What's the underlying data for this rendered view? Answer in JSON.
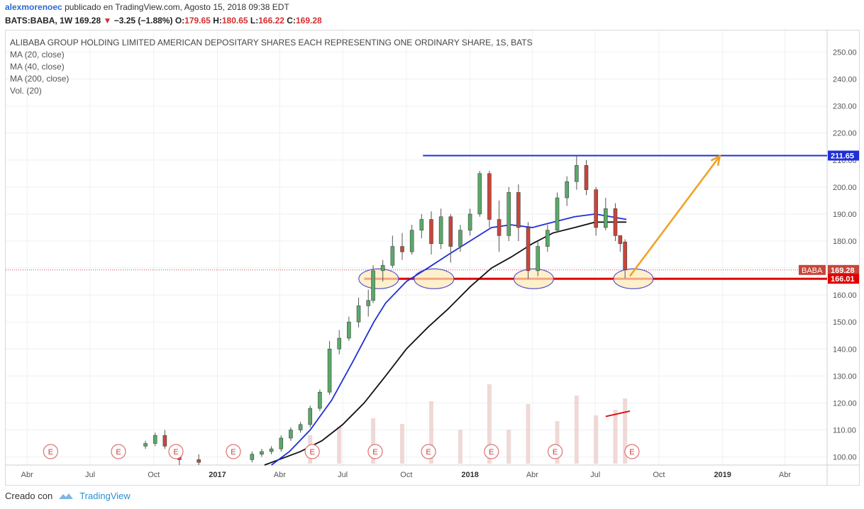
{
  "header": {
    "author": "alexmorenoec",
    "published": "publicado en TradingView.com, Agosto 15, 2018 09:38 EDT",
    "symbol": "BATS:BABA, 1W",
    "last": "169.28",
    "change": "−3.25 (−1.88%)",
    "o_label": "O:",
    "o_val": "179.65",
    "h_label": "H:",
    "h_val": "180.65",
    "l_label": "L:",
    "l_val": "166.22",
    "c_label": "C:",
    "c_val": "169.28"
  },
  "legend": {
    "title": "ALIBABA GROUP HOLDING LIMITED AMERICAN DEPOSITARY SHARES EACH REPRESENTING ONE ORDINARY SHARE, 1S, BATS",
    "ma20": "MA (20, close)",
    "ma40": "MA (40, close)",
    "ma200": "MA (200, close)",
    "vol": "Vol. (20)"
  },
  "footer": {
    "created": "Creado con",
    "brand": "TradingView"
  },
  "colors": {
    "up": "#5aa96a",
    "down": "#c8453a",
    "ma20": "#1f2fd6",
    "ma40": "#111111",
    "resistance": "#1f2fd6",
    "support": "#e00000",
    "arrow": "#f0a020",
    "ellipse_fill": "#fde9b8",
    "ellipse_stroke": "#5a55c8"
  },
  "chart_data": {
    "type": "candlestick",
    "symbol_badge": "BABA",
    "ylim": [
      97,
      258
    ],
    "y_ticks": [
      100,
      110,
      120,
      130,
      140,
      150,
      160,
      170,
      180,
      190,
      200,
      210,
      220,
      230,
      240,
      250
    ],
    "y_tick_labels": [
      "100.00",
      "110.00",
      "120.00",
      "130.00",
      "140.00",
      "150.00",
      "160.00",
      "170.00",
      "180.00",
      "190.00",
      "200.00",
      "210.00",
      "220.00",
      "230.00",
      "240.00",
      "250.00"
    ],
    "x_ticks": [
      {
        "label": "Abr",
        "date": "2016-04-01"
      },
      {
        "label": "Jul",
        "date": "2016-07-01"
      },
      {
        "label": "Oct",
        "date": "2016-10-01"
      },
      {
        "label": "2017",
        "date": "2017-01-01",
        "bold": true
      },
      {
        "label": "Abr",
        "date": "2017-04-01"
      },
      {
        "label": "Jul",
        "date": "2017-07-01"
      },
      {
        "label": "Oct",
        "date": "2017-10-01"
      },
      {
        "label": "2018",
        "date": "2018-01-01",
        "bold": true
      },
      {
        "label": "Abr",
        "date": "2018-04-01"
      },
      {
        "label": "Jul",
        "date": "2018-07-01"
      },
      {
        "label": "Oct",
        "date": "2018-10-01"
      },
      {
        "label": "2019",
        "date": "2019-01-01",
        "bold": true
      },
      {
        "label": "Abr",
        "date": "2019-04-01"
      }
    ],
    "x_range": [
      "2016-03-01",
      "2019-06-01"
    ],
    "last_price": 169.28,
    "last_price_label": "169.28",
    "resistance": {
      "value": 211.65,
      "label": "211.65",
      "from": "2017-10-25"
    },
    "support": {
      "value": 166.01,
      "label": "166.01",
      "from": "2017-08-01"
    },
    "target_arrow": {
      "from": [
        "2018-08-20",
        167.0
      ],
      "to": [
        "2018-12-28",
        211.5
      ]
    },
    "circled_lows": [
      {
        "date": "2017-08-22",
        "value": 166
      },
      {
        "date": "2017-11-10",
        "value": 166
      },
      {
        "date": "2018-04-03",
        "value": 166
      },
      {
        "date": "2018-08-25",
        "value": 166
      }
    ],
    "earnings_label": "E",
    "earnings_dates": [
      "2016-05-05",
      "2016-08-11",
      "2016-11-02",
      "2017-01-24",
      "2017-05-18",
      "2017-08-17",
      "2017-11-02",
      "2018-02-01",
      "2018-05-04",
      "2018-08-23"
    ],
    "ma20_points": [
      [
        "2017-03-20",
        97
      ],
      [
        "2017-04-15",
        102
      ],
      [
        "2017-05-15",
        110
      ],
      [
        "2017-06-15",
        121
      ],
      [
        "2017-07-15",
        135
      ],
      [
        "2017-08-15",
        150
      ],
      [
        "2017-09-01",
        157
      ],
      [
        "2017-10-01",
        165
      ],
      [
        "2017-11-01",
        170
      ],
      [
        "2017-12-01",
        175
      ],
      [
        "2018-01-01",
        180
      ],
      [
        "2018-02-01",
        185
      ],
      [
        "2018-03-01",
        186
      ],
      [
        "2018-04-01",
        185
      ],
      [
        "2018-05-01",
        187
      ],
      [
        "2018-06-01",
        189
      ],
      [
        "2018-07-01",
        190
      ],
      [
        "2018-08-15",
        188
      ]
    ],
    "ma40_points": [
      [
        "2017-03-10",
        97
      ],
      [
        "2017-05-01",
        102
      ],
      [
        "2017-06-01",
        106
      ],
      [
        "2017-07-01",
        112
      ],
      [
        "2017-08-01",
        120
      ],
      [
        "2017-09-01",
        130
      ],
      [
        "2017-10-01",
        140
      ],
      [
        "2017-11-01",
        148
      ],
      [
        "2017-12-01",
        155
      ],
      [
        "2018-01-01",
        163
      ],
      [
        "2018-02-01",
        170
      ],
      [
        "2018-03-01",
        174
      ],
      [
        "2018-04-01",
        179
      ],
      [
        "2018-05-01",
        183
      ],
      [
        "2018-06-01",
        185
      ],
      [
        "2018-07-01",
        187
      ],
      [
        "2018-08-15",
        187
      ]
    ],
    "candles": [
      [
        "2016-09-19",
        104,
        106,
        103,
        105
      ],
      [
        "2016-10-03",
        105,
        109,
        104,
        108
      ],
      [
        "2016-10-17",
        108,
        110,
        103,
        104
      ],
      [
        "2016-11-07",
        103,
        104,
        97,
        99
      ],
      [
        "2016-12-05",
        99,
        101,
        97,
        98
      ],
      [
        "2017-02-20",
        99,
        102,
        98,
        101
      ],
      [
        "2017-03-06",
        101,
        103,
        100,
        102
      ],
      [
        "2017-03-20",
        102,
        104,
        101,
        103
      ],
      [
        "2017-04-03",
        103,
        108,
        102,
        107
      ],
      [
        "2017-04-17",
        107,
        111,
        106,
        110
      ],
      [
        "2017-05-01",
        110,
        113,
        109,
        112
      ],
      [
        "2017-05-15",
        112,
        119,
        111,
        118
      ],
      [
        "2017-05-29",
        118,
        125,
        117,
        124
      ],
      [
        "2017-06-12",
        124,
        143,
        123,
        140
      ],
      [
        "2017-06-26",
        140,
        147,
        138,
        144
      ],
      [
        "2017-07-10",
        144,
        152,
        143,
        150
      ],
      [
        "2017-07-24",
        150,
        159,
        148,
        156
      ],
      [
        "2017-08-07",
        156,
        162,
        152,
        158
      ],
      [
        "2017-08-14",
        158,
        171,
        157,
        169
      ],
      [
        "2017-08-28",
        169,
        173,
        165,
        171
      ],
      [
        "2017-09-11",
        171,
        182,
        170,
        178
      ],
      [
        "2017-09-25",
        178,
        183,
        173,
        176
      ],
      [
        "2017-10-09",
        176,
        186,
        175,
        184
      ],
      [
        "2017-10-23",
        184,
        190,
        181,
        188
      ],
      [
        "2017-11-06",
        188,
        191,
        175,
        179
      ],
      [
        "2017-11-20",
        179,
        192,
        177,
        189
      ],
      [
        "2017-12-04",
        189,
        190,
        172,
        178
      ],
      [
        "2017-12-18",
        178,
        186,
        176,
        184
      ],
      [
        "2018-01-01",
        184,
        192,
        182,
        190
      ],
      [
        "2018-01-15",
        190,
        206,
        189,
        205
      ],
      [
        "2018-01-29",
        205,
        206,
        185,
        188
      ],
      [
        "2018-02-12",
        188,
        195,
        176,
        182
      ],
      [
        "2018-02-26",
        182,
        200,
        180,
        198
      ],
      [
        "2018-03-12",
        198,
        201,
        180,
        185
      ],
      [
        "2018-03-26",
        185,
        187,
        166,
        169
      ],
      [
        "2018-04-09",
        169,
        180,
        167,
        178
      ],
      [
        "2018-04-23",
        178,
        186,
        176,
        184
      ],
      [
        "2018-05-07",
        184,
        198,
        183,
        196
      ],
      [
        "2018-05-21",
        196,
        204,
        193,
        202
      ],
      [
        "2018-06-04",
        202,
        211.7,
        199,
        208
      ],
      [
        "2018-06-18",
        208,
        210,
        197,
        199
      ],
      [
        "2018-07-02",
        199,
        200,
        182,
        185
      ],
      [
        "2018-07-16",
        185,
        196,
        184,
        192
      ],
      [
        "2018-07-30",
        192,
        194,
        180,
        182
      ],
      [
        "2018-08-06",
        182,
        182,
        176,
        179
      ],
      [
        "2018-08-13",
        179.65,
        180.65,
        166.22,
        169.28
      ]
    ],
    "volume_bars": [
      [
        "2017-05-15",
        10
      ],
      [
        "2017-06-26",
        13
      ],
      [
        "2017-08-14",
        16
      ],
      [
        "2017-09-25",
        14
      ],
      [
        "2017-11-06",
        22
      ],
      [
        "2017-12-18",
        12
      ],
      [
        "2018-01-29",
        28
      ],
      [
        "2018-02-26",
        12
      ],
      [
        "2018-03-26",
        21
      ],
      [
        "2018-05-07",
        15
      ],
      [
        "2018-06-04",
        24
      ],
      [
        "2018-07-02",
        17
      ],
      [
        "2018-07-30",
        19
      ],
      [
        "2018-08-13",
        23
      ]
    ],
    "volume_ma_points": [
      [
        "2018-07-16",
        115
      ],
      [
        "2018-08-20",
        117
      ]
    ]
  }
}
